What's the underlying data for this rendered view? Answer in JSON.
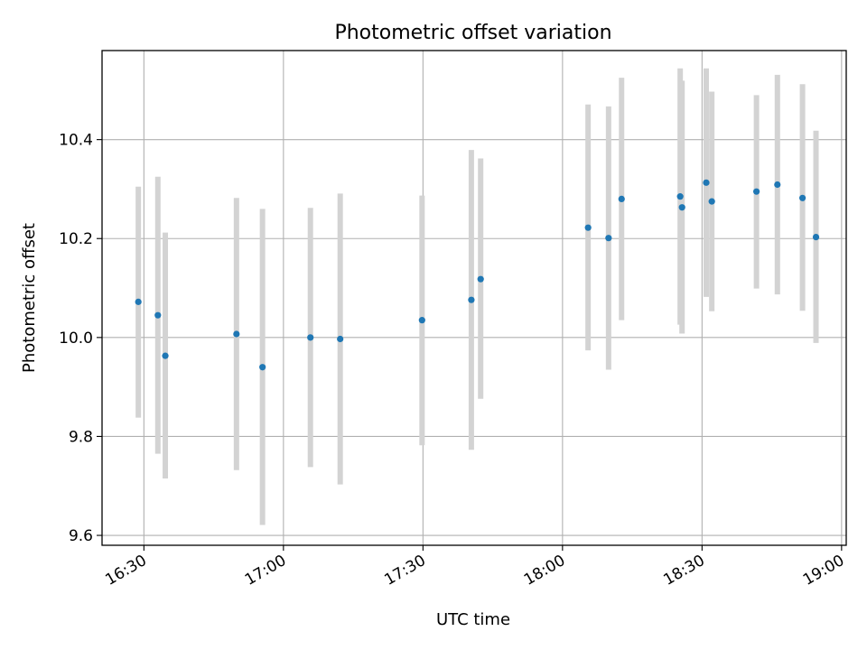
{
  "chart_data": {
    "type": "scatter",
    "title": "Photometric offset variation",
    "xlabel": "UTC time",
    "ylabel": "Photometric offset",
    "x_unit": "HH:MM UTC",
    "xlim": [
      "16:21",
      "19:01"
    ],
    "ylim": [
      9.58,
      10.58
    ],
    "x_ticks": [
      "16:30",
      "17:00",
      "17:30",
      "18:00",
      "18:30",
      "19:00"
    ],
    "y_ticks": [
      9.6,
      9.8,
      10.0,
      10.2,
      10.4
    ],
    "y_tick_labels": [
      "9.6",
      "9.8",
      "10.0",
      "10.2",
      "10.4"
    ],
    "grid": true,
    "legend": "none",
    "marker_color": "#1f77b4",
    "errorbar_color": "#d3d3d3",
    "points": [
      {
        "t": "16:28.8",
        "y": 10.072,
        "ylo": 9.838,
        "yhi": 10.305
      },
      {
        "t": "16:33.0",
        "y": 10.045,
        "ylo": 9.765,
        "yhi": 10.325
      },
      {
        "t": "16:34.6",
        "y": 9.963,
        "ylo": 9.715,
        "yhi": 10.212
      },
      {
        "t": "16:49.9",
        "y": 10.007,
        "ylo": 9.732,
        "yhi": 10.282
      },
      {
        "t": "16:55.5",
        "y": 9.94,
        "ylo": 9.621,
        "yhi": 10.26
      },
      {
        "t": "17:05.8",
        "y": 10.0,
        "ylo": 9.738,
        "yhi": 10.262
      },
      {
        "t": "17:12.2",
        "y": 9.997,
        "ylo": 9.703,
        "yhi": 10.291
      },
      {
        "t": "17:29.8",
        "y": 10.035,
        "ylo": 9.782,
        "yhi": 10.287
      },
      {
        "t": "17:40.4",
        "y": 10.076,
        "ylo": 9.773,
        "yhi": 10.379
      },
      {
        "t": "17:42.4",
        "y": 10.118,
        "ylo": 9.876,
        "yhi": 10.362
      },
      {
        "t": "18:05.5",
        "y": 10.222,
        "ylo": 9.974,
        "yhi": 10.471
      },
      {
        "t": "18:09.9",
        "y": 10.201,
        "ylo": 9.935,
        "yhi": 10.467
      },
      {
        "t": "18:12.7",
        "y": 10.28,
        "ylo": 10.035,
        "yhi": 10.525
      },
      {
        "t": "18:25.3",
        "y": 10.285,
        "ylo": 10.026,
        "yhi": 10.544
      },
      {
        "t": "18:25.7",
        "y": 10.263,
        "ylo": 10.008,
        "yhi": 10.519
      },
      {
        "t": "18:30.9",
        "y": 10.313,
        "ylo": 10.082,
        "yhi": 10.544
      },
      {
        "t": "18:32.1",
        "y": 10.275,
        "ylo": 10.053,
        "yhi": 10.497
      },
      {
        "t": "18:41.7",
        "y": 10.295,
        "ylo": 10.099,
        "yhi": 10.49
      },
      {
        "t": "18:46.2",
        "y": 10.309,
        "ylo": 10.087,
        "yhi": 10.531
      },
      {
        "t": "18:51.6",
        "y": 10.282,
        "ylo": 10.054,
        "yhi": 10.512
      },
      {
        "t": "18:54.5",
        "y": 10.203,
        "ylo": 9.989,
        "yhi": 10.418
      }
    ]
  }
}
